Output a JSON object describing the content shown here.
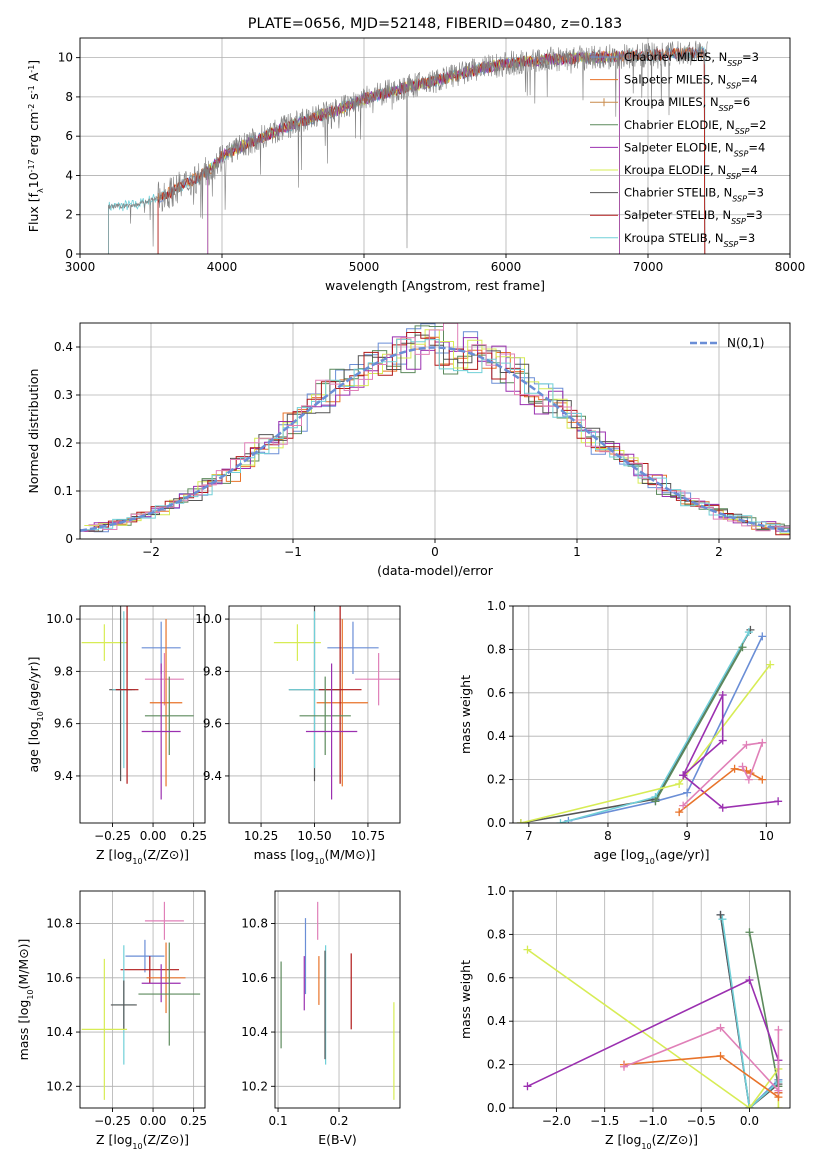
{
  "palette": {
    "chabrier_miles": "#6a8ed6",
    "salpeter_miles": "#e8732a",
    "kroupa_miles": "#c88a4a",
    "chabrier_elodie": "#5c8a5c",
    "salpeter_elodie": "#9b30b0",
    "kroupa_elodie": "#d7ec55",
    "chabrier_stelib": "#555555",
    "salpeter_stelib": "#b01818",
    "kroupa_stelib": "#70d0d8",
    "pink": "#e080b8",
    "spectrum_data": "#808080",
    "normal": "#6a8ed6"
  },
  "chart_data": [
    {
      "id": "spectrum",
      "type": "line",
      "title": "PLATE=0656, MJD=52148, FIBERID=0480, z=0.183",
      "xlabel": "wavelength [Angstrom, rest frame]",
      "ylabel": "Flux [f_λ10^-17 erg cm^-2 s^-1 A^-1]",
      "xlim": [
        3000,
        8000
      ],
      "ylim": [
        0,
        11
      ],
      "xticks": [
        3000,
        4000,
        5000,
        6000,
        7000,
        8000
      ],
      "yticks": [
        0,
        2,
        4,
        6,
        8,
        10
      ],
      "legend_position": "top-right",
      "legend": [
        {
          "model": "Chabrier MILES",
          "nssp": "3",
          "color_key": "chabrier_miles"
        },
        {
          "model": "Salpeter MILES",
          "nssp": "4",
          "color_key": "salpeter_miles"
        },
        {
          "model": "Kroupa MILES",
          "nssp": "6",
          "color_key": "kroupa_miles"
        },
        {
          "model": "Chabrier ELODIE",
          "nssp": "2",
          "color_key": "chabrier_elodie"
        },
        {
          "model": "Salpeter ELODIE",
          "nssp": "4",
          "color_key": "salpeter_elodie"
        },
        {
          "model": "Kroupa ELODIE",
          "nssp": "4",
          "color_key": "kroupa_elodie"
        },
        {
          "model": "Chabrier STELIB",
          "nssp": "3",
          "color_key": "chabrier_stelib"
        },
        {
          "model": "Salpeter STELIB",
          "nssp": "3",
          "color_key": "salpeter_stelib"
        },
        {
          "model": "Kroupa STELIB",
          "nssp": "3",
          "color_key": "kroupa_stelib"
        }
      ],
      "continuum": {
        "x": [
          3200,
          3400,
          3600,
          3800,
          3900,
          4000,
          4200,
          4500,
          4800,
          5000,
          5300,
          5500,
          5800,
          6000,
          6300,
          6600,
          6900,
          7200,
          7400
        ],
        "y": [
          2.4,
          2.5,
          3.0,
          3.8,
          4.2,
          5.0,
          5.7,
          6.6,
          7.3,
          7.9,
          8.5,
          8.8,
          9.4,
          9.7,
          9.9,
          10.0,
          10.1,
          10.2,
          10.3
        ]
      },
      "model_ranges": [
        {
          "color_key": "kroupa_stelib",
          "x": [
            3200,
            7400
          ]
        },
        {
          "color_key": "chabrier_miles",
          "x": [
            3550,
            7400
          ]
        },
        {
          "color_key": "salpeter_miles",
          "x": [
            3550,
            7400
          ]
        },
        {
          "color_key": "kroupa_elodie",
          "x": [
            3900,
            6800
          ]
        },
        {
          "color_key": "salpeter_elodie",
          "x": [
            3900,
            6800
          ]
        },
        {
          "color_key": "salpeter_stelib",
          "x": [
            3550,
            7400
          ]
        }
      ]
    },
    {
      "id": "residuals",
      "type": "step",
      "xlabel": "(data-model)/error",
      "ylabel": "Normed distribution",
      "xlim": [
        -2.5,
        2.5
      ],
      "ylim": [
        0,
        0.45
      ],
      "xticks": [
        -2,
        -1,
        0,
        1,
        2
      ],
      "yticks": [
        0.0,
        0.1,
        0.2,
        0.3,
        0.4
      ],
      "legend_position": "top-right",
      "legend": [
        {
          "label": "N(0,1)",
          "color_key": "normal"
        }
      ],
      "normal_curve": {
        "mean": 0,
        "sigma": 1
      }
    },
    {
      "id": "age_vs_Z",
      "type": "errorbar",
      "xlabel": "Z [log10(Z/Z⊙)]",
      "ylabel": "age  [log10(age/yr)]",
      "xlim": [
        -0.45,
        0.32
      ],
      "ylim": [
        9.22,
        10.05
      ],
      "xticks": [
        -0.25,
        0.0,
        0.25
      ],
      "yticks": [
        9.4,
        9.6,
        9.8,
        10.0
      ],
      "points": [
        {
          "color_key": "kroupa_elodie",
          "x": -0.3,
          "y": 9.91,
          "xe": 0.14,
          "ye": 0.07
        },
        {
          "color_key": "chabrier_miles",
          "x": 0.05,
          "y": 9.89,
          "xe": 0.12,
          "ye": 0.1
        },
        {
          "color_key": "pink",
          "x": 0.07,
          "y": 9.77,
          "xe": 0.12,
          "ye": 0.1
        },
        {
          "color_key": "salpeter_miles",
          "x": 0.08,
          "y": 9.68,
          "xe": 0.1,
          "ye": 0.32
        },
        {
          "color_key": "chabrier_stelib",
          "x": -0.2,
          "y": 9.73,
          "xe": 0.07,
          "ye": 0.35
        },
        {
          "color_key": "kroupa_stelib",
          "x": -0.18,
          "y": 9.73,
          "xe": 0.07,
          "ye": 0.3
        },
        {
          "color_key": "salpeter_stelib",
          "x": -0.16,
          "y": 9.73,
          "xe": 0.07,
          "ye": 0.36
        },
        {
          "color_key": "chabrier_elodie",
          "x": 0.1,
          "y": 9.63,
          "xe": 0.15,
          "ye": 0.15
        },
        {
          "color_key": "salpeter_elodie",
          "x": 0.05,
          "y": 9.57,
          "xe": 0.12,
          "ye": 0.26
        }
      ]
    },
    {
      "id": "age_vs_mass",
      "type": "errorbar",
      "xlabel": "mass [log10(M/M⊙)]",
      "ylabel": "",
      "xlim": [
        10.1,
        10.9
      ],
      "ylim": [
        9.22,
        10.05
      ],
      "xticks": [
        10.25,
        10.5,
        10.75
      ],
      "yticks": [
        9.4,
        9.6,
        9.8,
        10.0
      ],
      "points": [
        {
          "color_key": "kroupa_elodie",
          "x": 10.42,
          "y": 9.91,
          "xe": 0.11,
          "ye": 0.07
        },
        {
          "color_key": "chabrier_miles",
          "x": 10.68,
          "y": 9.89,
          "xe": 0.12,
          "ye": 0.1
        },
        {
          "color_key": "pink",
          "x": 10.8,
          "y": 9.77,
          "xe": 0.11,
          "ye": 0.1
        },
        {
          "color_key": "salpeter_miles",
          "x": 10.63,
          "y": 9.68,
          "xe": 0.12,
          "ye": 0.32
        },
        {
          "color_key": "chabrier_stelib",
          "x": 10.5,
          "y": 9.73,
          "xe": 0.12,
          "ye": 0.35
        },
        {
          "color_key": "kroupa_stelib",
          "x": 10.5,
          "y": 9.73,
          "xe": 0.12,
          "ye": 0.3
        },
        {
          "color_key": "salpeter_stelib",
          "x": 10.62,
          "y": 9.73,
          "xe": 0.1,
          "ye": 0.36
        },
        {
          "color_key": "chabrier_elodie",
          "x": 10.55,
          "y": 9.63,
          "xe": 0.12,
          "ye": 0.15
        },
        {
          "color_key": "salpeter_elodie",
          "x": 10.58,
          "y": 9.57,
          "xe": 0.12,
          "ye": 0.26
        }
      ]
    },
    {
      "id": "weight_vs_age",
      "type": "line",
      "xlabel": "age  [log10(age/yr)]",
      "ylabel": "mass weight",
      "xlim": [
        6.8,
        10.3
      ],
      "ylim": [
        0,
        1.0
      ],
      "xticks": [
        7,
        8,
        9,
        10
      ],
      "yticks": [
        0.0,
        0.2,
        0.4,
        0.6,
        0.8,
        1.0
      ],
      "series": [
        {
          "color_key": "chabrier_miles",
          "x": [
            7.5,
            8.6,
            9.0,
            9.95
          ],
          "y": [
            0.01,
            0.1,
            0.14,
            0.86
          ]
        },
        {
          "color_key": "chabrier_stelib",
          "x": [
            6.9,
            8.6,
            9.8
          ],
          "y": [
            0.0,
            0.11,
            0.89
          ]
        },
        {
          "color_key": "kroupa_stelib",
          "x": [
            7.4,
            8.6,
            9.78
          ],
          "y": [
            0.0,
            0.12,
            0.88
          ]
        },
        {
          "color_key": "chabrier_elodie",
          "x": [
            8.6,
            9.7
          ],
          "y": [
            0.1,
            0.81
          ]
        },
        {
          "color_key": "kroupa_elodie",
          "x": [
            6.9,
            8.9,
            10.05
          ],
          "y": [
            0.0,
            0.18,
            0.73
          ]
        },
        {
          "color_key": "salpeter_elodie",
          "x": [
            8.95,
            9.45,
            9.45,
            8.95,
            9.45,
            10.15
          ],
          "y": [
            0.22,
            0.59,
            0.38,
            0.22,
            0.07,
            0.1
          ]
        },
        {
          "color_key": "salpeter_miles",
          "x": [
            8.9,
            9.6,
            9.75,
            9.95,
            9.8
          ],
          "y": [
            0.05,
            0.25,
            0.24,
            0.2,
            0.23
          ]
        },
        {
          "color_key": "pink",
          "x": [
            8.95,
            9.75,
            9.95,
            9.78,
            9.7
          ],
          "y": [
            0.08,
            0.36,
            0.37,
            0.2,
            0.26
          ]
        }
      ]
    },
    {
      "id": "mass_vs_Z",
      "type": "errorbar",
      "xlabel": "Z [log10(Z/Z⊙)]",
      "ylabel": "mass [log10(M/M⊙)]",
      "xlim": [
        -0.45,
        0.32
      ],
      "ylim": [
        10.12,
        10.92
      ],
      "xticks": [
        -0.25,
        0.0,
        0.25
      ],
      "yticks": [
        10.2,
        10.4,
        10.6,
        10.8
      ],
      "points": [
        {
          "color_key": "pink",
          "x": 0.07,
          "y": 10.81,
          "xe": 0.12,
          "ye": 0.07
        },
        {
          "color_key": "chabrier_miles",
          "x": -0.05,
          "y": 10.68,
          "xe": 0.12,
          "ye": 0.06
        },
        {
          "color_key": "salpeter_stelib",
          "x": -0.02,
          "y": 10.63,
          "xe": 0.18,
          "ye": 0.05
        },
        {
          "color_key": "salpeter_miles",
          "x": 0.08,
          "y": 10.6,
          "xe": 0.12,
          "ye": 0.13
        },
        {
          "color_key": "salpeter_elodie",
          "x": 0.05,
          "y": 10.58,
          "xe": 0.12,
          "ye": 0.07
        },
        {
          "color_key": "chabrier_elodie",
          "x": 0.1,
          "y": 10.54,
          "xe": 0.19,
          "ye": 0.19
        },
        {
          "color_key": "kroupa_stelib",
          "x": -0.18,
          "y": 10.5,
          "xe": 0.07,
          "ye": 0.22
        },
        {
          "color_key": "chabrier_stelib",
          "x": -0.18,
          "y": 10.5,
          "xe": 0.08,
          "ye": 0.09
        },
        {
          "color_key": "kroupa_elodie",
          "x": -0.3,
          "y": 10.41,
          "xe": 0.14,
          "ye": 0.26
        }
      ]
    },
    {
      "id": "mass_vs_ebv",
      "type": "errorbar",
      "xlabel": "E(B-V)",
      "ylabel": "",
      "xlim": [
        0.095,
        0.3
      ],
      "ylim": [
        10.12,
        10.92
      ],
      "xticks": [
        0.1,
        0.2
      ],
      "yticks": [
        10.2,
        10.4,
        10.6,
        10.8
      ],
      "points": [
        {
          "color_key": "chabrier_elodie",
          "x": 0.105,
          "y": 10.5,
          "ye": 0.16
        },
        {
          "color_key": "chabrier_miles",
          "x": 0.145,
          "y": 10.68,
          "ye": 0.14
        },
        {
          "color_key": "salpeter_elodie",
          "x": 0.143,
          "y": 10.58,
          "ye": 0.1
        },
        {
          "color_key": "pink",
          "x": 0.165,
          "y": 10.81,
          "ye": 0.07
        },
        {
          "color_key": "salpeter_miles",
          "x": 0.167,
          "y": 10.59,
          "ye": 0.09
        },
        {
          "color_key": "kroupa_stelib",
          "x": 0.178,
          "y": 10.5,
          "ye": 0.22
        },
        {
          "color_key": "chabrier_stelib",
          "x": 0.177,
          "y": 10.5,
          "ye": 0.2
        },
        {
          "color_key": "salpeter_stelib",
          "x": 0.22,
          "y": 10.55,
          "ye": 0.14
        },
        {
          "color_key": "kroupa_elodie",
          "x": 0.29,
          "y": 10.33,
          "ye": 0.18
        }
      ]
    },
    {
      "id": "weight_vs_Z",
      "type": "line",
      "xlabel": "Z [log10(Z/Z⊙)]",
      "ylabel": "mass weight",
      "xlim": [
        -2.45,
        0.42
      ],
      "ylim": [
        0,
        1.0
      ],
      "xticks": [
        -2.0,
        -1.5,
        -1.0,
        -0.5,
        0.0
      ],
      "yticks": [
        0.0,
        0.2,
        0.4,
        0.6,
        0.8,
        1.0
      ],
      "series": [
        {
          "color_key": "chabrier_miles",
          "x": [
            -0.3,
            0.0,
            0.3
          ],
          "y": [
            0.89,
            0.0,
            0.13
          ]
        },
        {
          "color_key": "chabrier_stelib",
          "x": [
            -0.3,
            0.0,
            0.3
          ],
          "y": [
            0.89,
            0.0,
            0.11
          ]
        },
        {
          "color_key": "kroupa_stelib",
          "x": [
            -0.28,
            0.0,
            0.3
          ],
          "y": [
            0.87,
            0.0,
            0.12
          ]
        },
        {
          "color_key": "chabrier_elodie",
          "x": [
            0.0,
            0.3
          ],
          "y": [
            0.81,
            0.1
          ]
        },
        {
          "color_key": "kroupa_elodie",
          "x": [
            -2.3,
            0.0,
            0.3,
            0.3
          ],
          "y": [
            0.73,
            0.0,
            0.18,
            0.0
          ]
        },
        {
          "color_key": "salpeter_elodie",
          "x": [
            -2.3,
            0.0,
            0.3,
            0.3
          ],
          "y": [
            0.1,
            0.59,
            0.22,
            0.07
          ]
        },
        {
          "color_key": "salpeter_miles",
          "x": [
            -1.3,
            -0.3,
            0.3,
            0.3
          ],
          "y": [
            0.2,
            0.24,
            0.05,
            0.07
          ]
        },
        {
          "color_key": "pink",
          "x": [
            -1.3,
            -0.3,
            0.3,
            0.3
          ],
          "y": [
            0.19,
            0.37,
            0.08,
            0.36
          ]
        }
      ]
    }
  ]
}
